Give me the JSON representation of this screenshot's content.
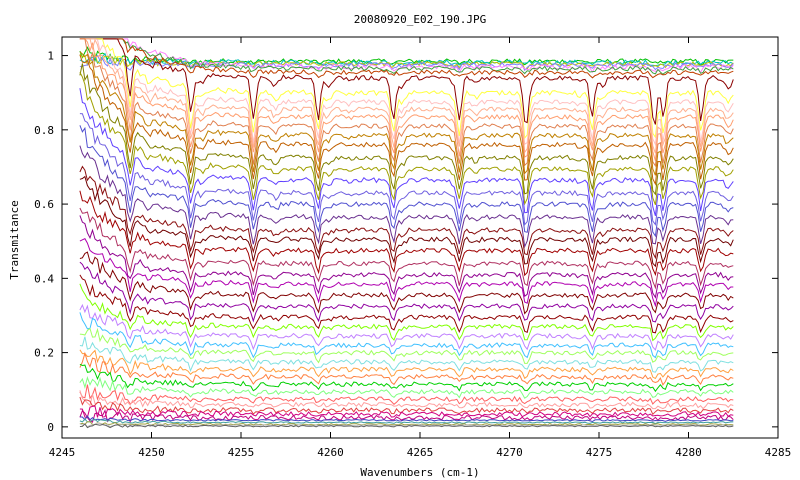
{
  "chart_data": {
    "type": "line",
    "title": "20080920_E02_190.JPG",
    "xlabel": "Wavenumbers (cm-1)",
    "ylabel": "Transmitance",
    "xlim": [
      4245,
      4285
    ],
    "ylim": [
      -0.03,
      1.05
    ],
    "x_ticks": [
      4245,
      4250,
      4255,
      4260,
      4265,
      4270,
      4275,
      4280,
      4285
    ],
    "y_ticks": [
      0,
      0.2,
      0.4,
      0.6,
      0.8,
      1
    ],
    "x_tick_labels": [
      "4245",
      "4250",
      "4255",
      "4260",
      "4265",
      "4270",
      "4275",
      "4280",
      "4285"
    ],
    "y_tick_labels": [
      "0",
      "0.2",
      "0.4",
      "0.6",
      "0.8",
      "1"
    ],
    "x_range": [
      4246,
      4282.5
    ],
    "absorption_lines": [
      4248.8,
      4252.2,
      4255.7,
      4259.3,
      4263.5,
      4267.2,
      4270.9,
      4274.6,
      4278.1,
      4278.6,
      4280.7
    ],
    "series_levels": [
      0.985,
      0.982,
      0.978,
      0.975,
      0.97,
      0.965,
      0.955,
      0.94,
      0.9,
      0.875,
      0.855,
      0.835,
      0.81,
      0.785,
      0.76,
      0.725,
      0.695,
      0.665,
      0.63,
      0.6,
      0.565,
      0.53,
      0.505,
      0.475,
      0.44,
      0.41,
      0.385,
      0.355,
      0.325,
      0.295,
      0.27,
      0.245,
      0.22,
      0.2,
      0.175,
      0.155,
      0.135,
      0.115,
      0.095,
      0.075,
      0.06,
      0.045,
      0.035,
      0.025,
      0.018,
      0.012,
      0.007,
      0.004,
      0.002
    ],
    "series_colors": [
      "#00c000",
      "#00c0c0",
      "#c0c000",
      "#8080ff",
      "#ff80ff",
      "#40a040",
      "#c04000",
      "#8b0000",
      "#ffff40",
      "#ffc0c0",
      "#ffb090",
      "#ff9f70",
      "#e08050",
      "#c08000",
      "#c06000",
      "#808000",
      "#a0a000",
      "#6040ff",
      "#7060e0",
      "#5050d0",
      "#6a3090",
      "#8b1010",
      "#700000",
      "#a00000",
      "#b03060",
      "#900090",
      "#b000b0",
      "#800000",
      "#9000a0",
      "#900000",
      "#80ff00",
      "#c080ff",
      "#40c0ff",
      "#a0ff60",
      "#80e0e0",
      "#ffa040",
      "#ff8040",
      "#00d000",
      "#80ff80",
      "#ff6060",
      "#ffa0a0",
      "#e04040",
      "#d00080",
      "#c00080",
      "#4040c0",
      "#40a0a0",
      "#a0a040",
      "#c0c0c0",
      "#606060"
    ],
    "grid": false,
    "legend": "none"
  }
}
